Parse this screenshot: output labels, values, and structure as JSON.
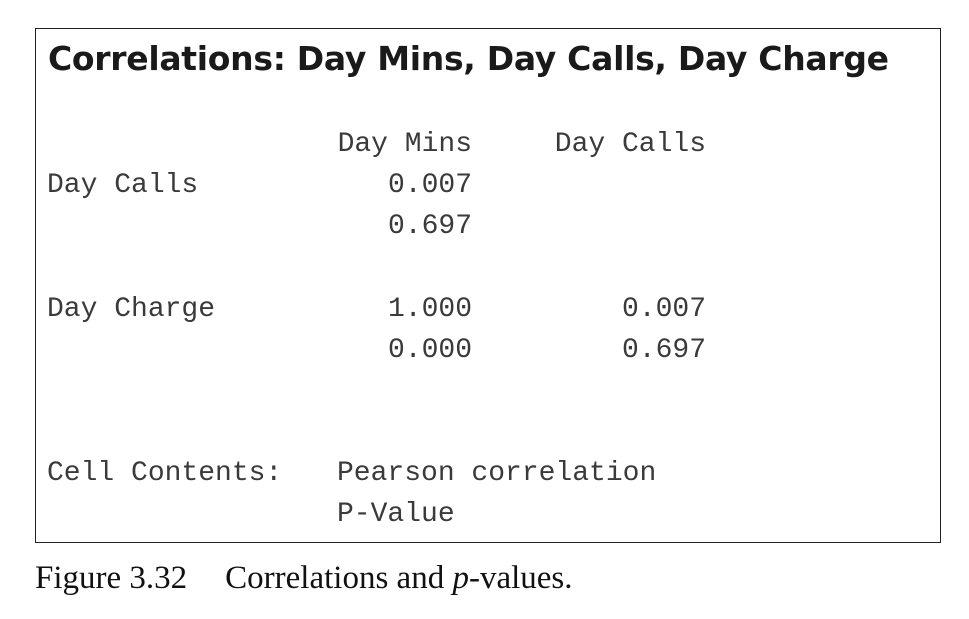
{
  "output": {
    "title": "Correlations: Day Mins, Day Calls, Day Charge",
    "column_headers": [
      "Day Mins",
      "Day Calls"
    ],
    "rows": [
      {
        "label": "Day Calls",
        "correlation": [
          "0.007",
          ""
        ],
        "p_value": [
          "0.697",
          ""
        ]
      },
      {
        "label": "Day Charge",
        "correlation": [
          "1.000",
          "0.007"
        ],
        "p_value": [
          "0.000",
          "0.697"
        ]
      }
    ],
    "cell_contents_label": "Cell Contents:",
    "cell_contents_lines": [
      "Pearson correlation",
      "P-Value"
    ]
  },
  "caption": {
    "number": "Figure 3.32",
    "text_before": "Correlations and ",
    "text_italic": "p",
    "text_after": "-values."
  }
}
